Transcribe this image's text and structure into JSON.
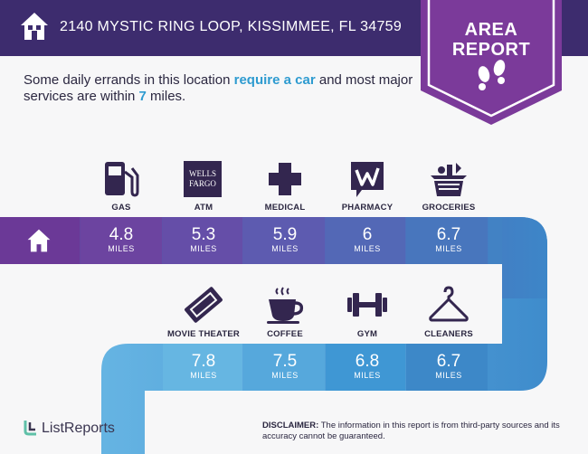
{
  "header": {
    "address": "2140 MYSTIC RING LOOP, KISSIMMEE, FL 34759",
    "badge_line1": "AREA",
    "badge_line2": "REPORT"
  },
  "intro": {
    "part1": "Some daily errands in this location ",
    "highlight1": "require a car",
    "part2": " and most major services are within ",
    "highlight2": "7",
    "part3": " miles."
  },
  "row1": [
    {
      "label": "GAS",
      "value": "4.8",
      "unit": "MILES",
      "icon": "gas-pump-icon"
    },
    {
      "label": "ATM",
      "value": "5.3",
      "unit": "MILES",
      "icon": "wells-fargo-logo",
      "logo_line1": "WELLS",
      "logo_line2": "FARGO"
    },
    {
      "label": "MEDICAL",
      "value": "5.9",
      "unit": "MILES",
      "icon": "medical-cross-icon"
    },
    {
      "label": "PHARMACY",
      "value": "6",
      "unit": "MILES",
      "icon": "walgreens-logo"
    },
    {
      "label": "GROCERIES",
      "value": "6.7",
      "unit": "MILES",
      "icon": "grocery-basket-icon"
    }
  ],
  "row2": [
    {
      "label": "MOVIE THEATER",
      "value": "7.8",
      "unit": "MILES",
      "icon": "movie-ticket-icon"
    },
    {
      "label": "COFFEE",
      "value": "7.5",
      "unit": "MILES",
      "icon": "coffee-cup-icon"
    },
    {
      "label": "GYM",
      "value": "6.8",
      "unit": "MILES",
      "icon": "dumbbell-icon"
    },
    {
      "label": "CLEANERS",
      "value": "6.7",
      "unit": "MILES",
      "icon": "hanger-icon"
    }
  ],
  "footer": {
    "logo": "ListReports",
    "disclaimer_label": "DISCLAIMER:",
    "disclaimer_text": " The information in this report is from third-party sources and its accuracy cannot be guaranteed."
  },
  "colors": {
    "header": "#3d2c6e",
    "badge": "#7b3a9a",
    "band_start": "#6a3a98",
    "band_end": "#3d86c8",
    "band2": "#5fb2e0",
    "highlight": "#2e9bd0"
  }
}
